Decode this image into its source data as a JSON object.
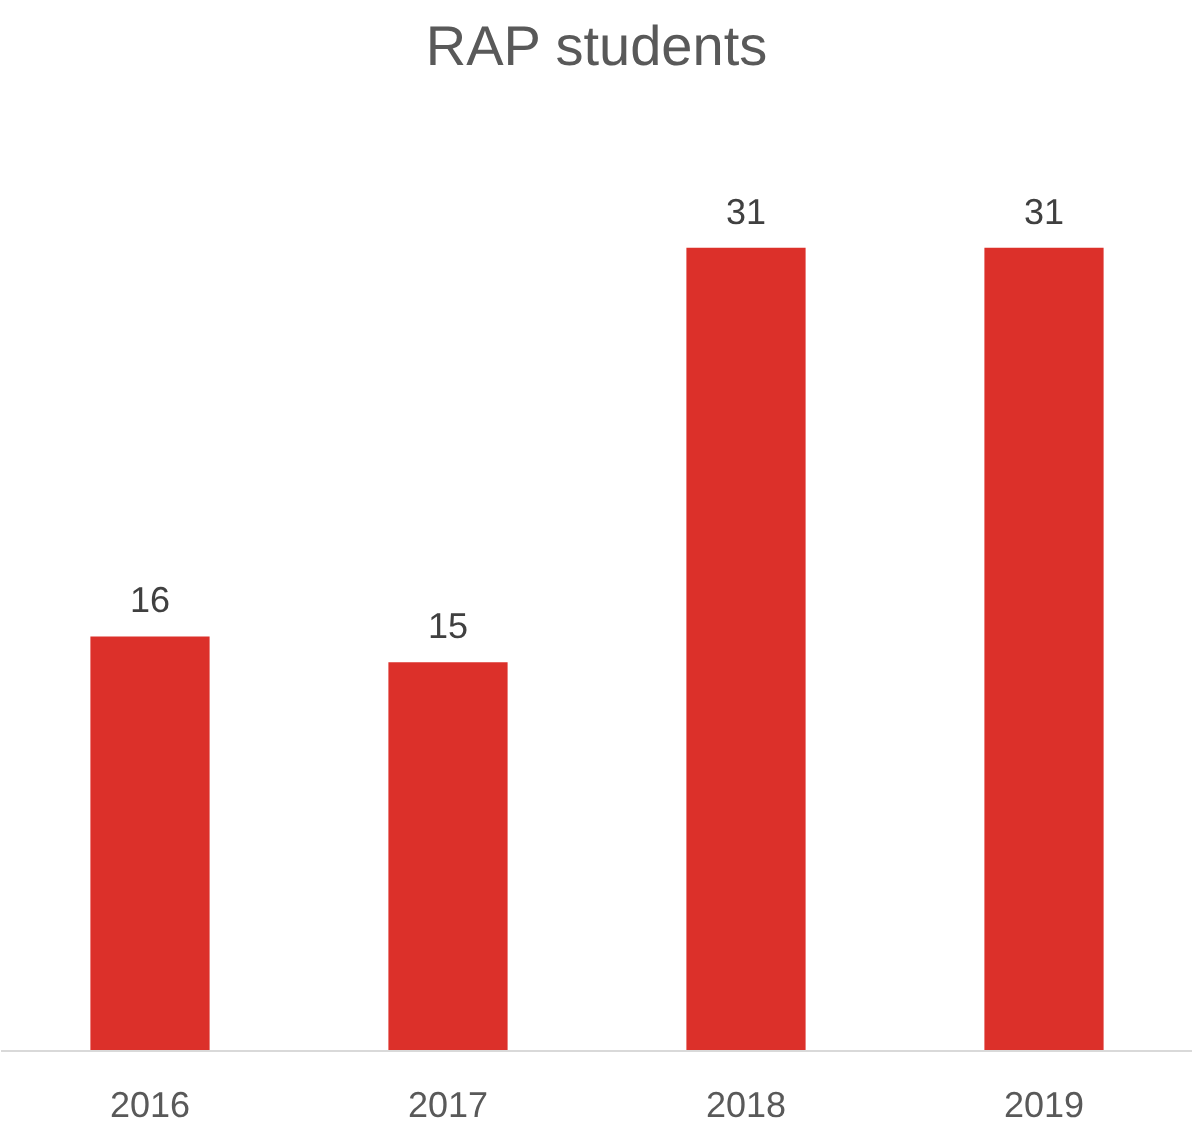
{
  "chart_data": {
    "type": "bar",
    "title": "RAP students",
    "categories": [
      "2016",
      "2017",
      "2018",
      "2019"
    ],
    "values": [
      16,
      15,
      31,
      31
    ],
    "color": "#dc302a",
    "data_labels": true,
    "tick_labels": "x",
    "grid": false
  }
}
